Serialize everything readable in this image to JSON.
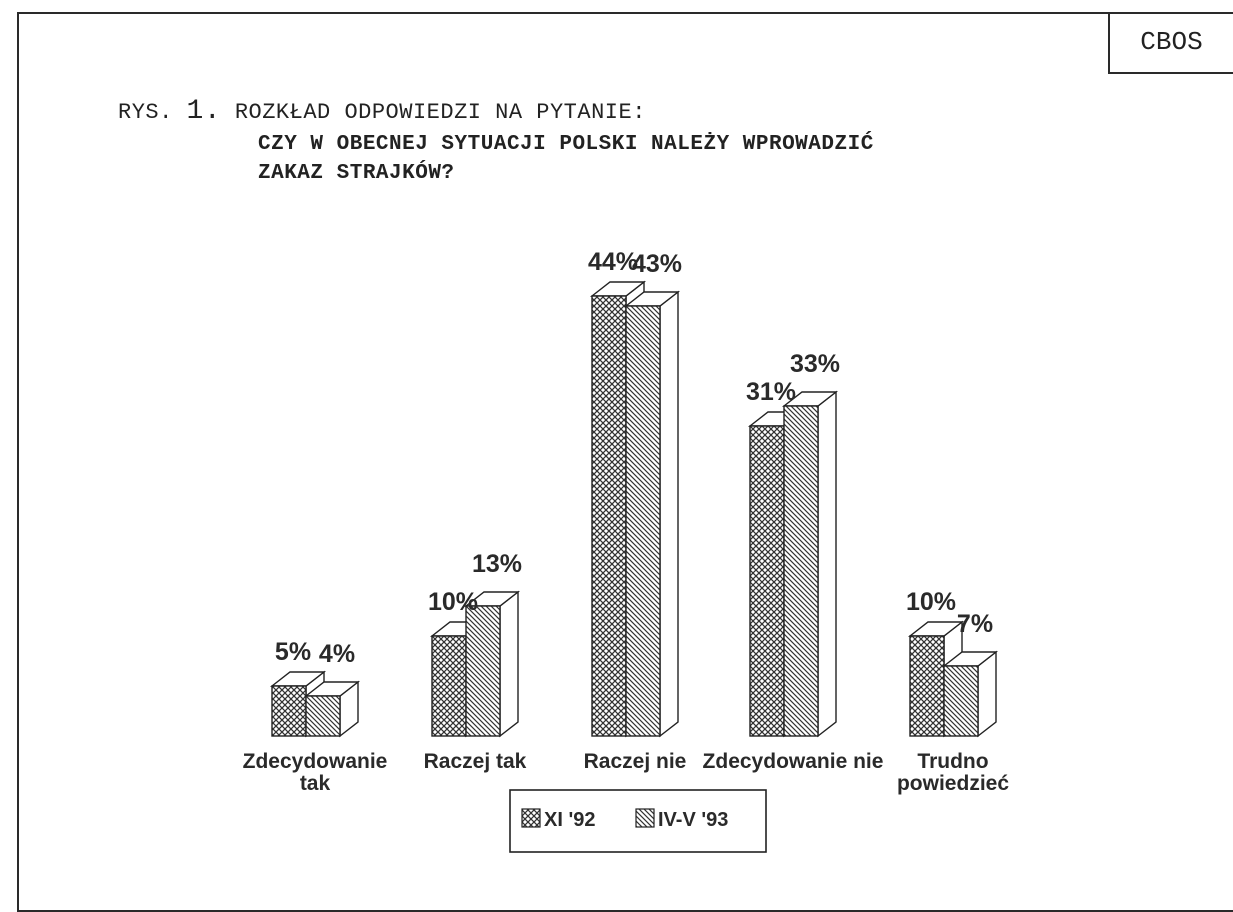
{
  "corner_label": "CBOS",
  "title": {
    "prefix": "RYS.",
    "number": "1.",
    "line1": "ROZKŁAD ODPOWIEDZI NA PYTANIE:",
    "line2": "CZY W OBECNEJ SYTUACJI POLSKI NALEŻY WPROWADZIĆ",
    "line3": "ZAKAZ STRAJKÓW?"
  },
  "chart_data": {
    "type": "bar",
    "categories": [
      [
        "Zdecydowanie",
        "tak"
      ],
      [
        "Raczej tak"
      ],
      [
        "Raczej nie"
      ],
      [
        "Zdecydowanie nie"
      ],
      [
        "Trudno",
        "powiedzieć"
      ]
    ],
    "series": [
      {
        "name": "XI '92",
        "values": [
          5,
          10,
          44,
          31,
          10
        ],
        "labels": [
          "5%",
          "10%",
          "44%",
          "31%",
          "10%"
        ]
      },
      {
        "name": "IV-V '93",
        "values": [
          4,
          13,
          43,
          33,
          7
        ],
        "labels": [
          "4%",
          "13%",
          "43%",
          "33%",
          "7%"
        ]
      }
    ],
    "legend_position": "bottom",
    "grid": false,
    "style": "3d-hatched"
  }
}
